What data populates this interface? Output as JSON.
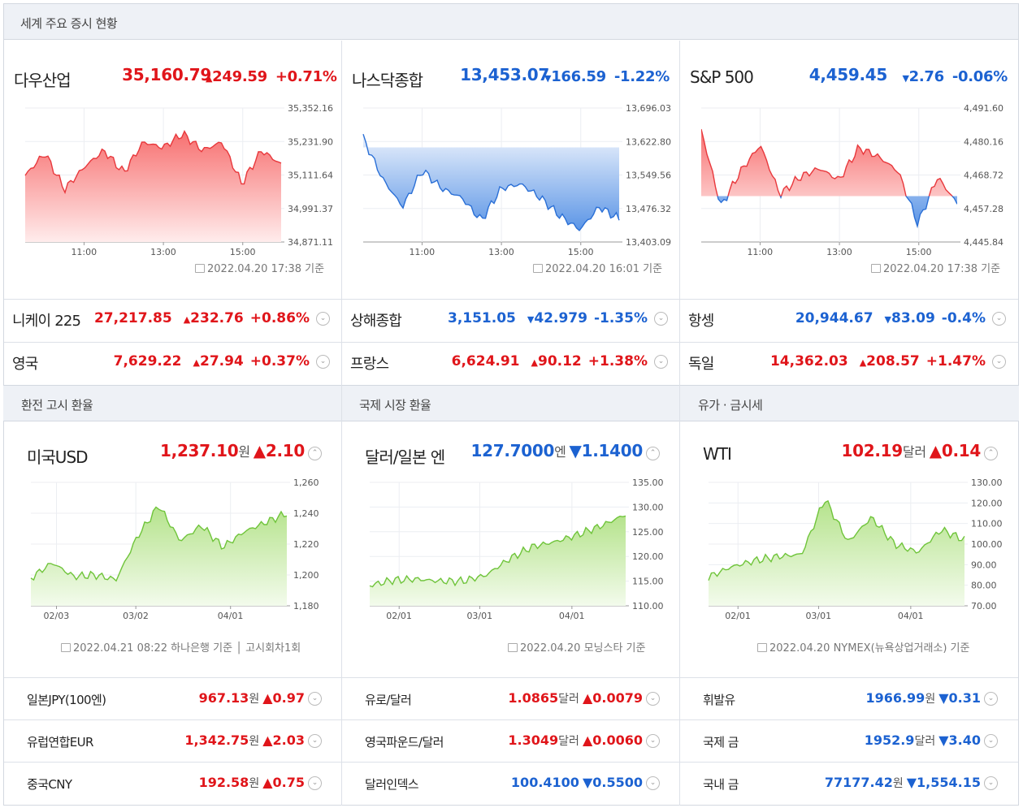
{
  "sections": {
    "stocks_title": "세계 주요 증시 현황",
    "fx_title": "환전 고시 환율",
    "intl_title": "국제 시장 환율",
    "oil_title": "유가 · 금시세"
  },
  "stock_panels": [
    {
      "name": "다우산업",
      "price": "35,160.79",
      "change": "249.59",
      "pct": "+0.71%",
      "dir": "up",
      "stamp": "2022.04.20 17:38 기준",
      "yticks": [
        "35,352.16",
        "35,231.90",
        "35,111.64",
        "34,991.37",
        "34,871.11"
      ],
      "xticks": [
        "11:00",
        "13:00",
        "15:00"
      ]
    },
    {
      "name": "나스닥종합",
      "price": "13,453.07",
      "change": "166.59",
      "pct": "-1.22%",
      "dir": "down",
      "stamp": "2022.04.20 16:01 기준",
      "yticks": [
        "13,696.03",
        "13,622.80",
        "13,549.56",
        "13,476.32",
        "13,403.09"
      ],
      "xticks": [
        "11:00",
        "13:00",
        "15:00"
      ]
    },
    {
      "name": "S&P 500",
      "price": "4,459.45",
      "change": "2.76",
      "pct": "-0.06%",
      "dir": "down",
      "stamp": "2022.04.20 17:38 기준",
      "yticks": [
        "4,491.60",
        "4,480.16",
        "4,468.72",
        "4,457.28",
        "4,445.84"
      ],
      "xticks": [
        "11:00",
        "13:00",
        "15:00"
      ]
    }
  ],
  "stock_rows": [
    [
      {
        "name": "니케이 225",
        "price": "27,217.85",
        "change": "232.76",
        "pct": "+0.86%",
        "dir": "up"
      },
      {
        "name": "상해종합",
        "price": "3,151.05",
        "change": "42.979",
        "pct": "-1.35%",
        "dir": "down"
      },
      {
        "name": "항셍",
        "price": "20,944.67",
        "change": "83.09",
        "pct": "-0.4%",
        "dir": "down"
      }
    ],
    [
      {
        "name": "영국",
        "price": "7,629.22",
        "change": "27.94",
        "pct": "+0.37%",
        "dir": "up"
      },
      {
        "name": "프랑스",
        "price": "6,624.91",
        "change": "90.12",
        "pct": "+1.38%",
        "dir": "up"
      },
      {
        "name": "독일",
        "price": "14,362.03",
        "change": "208.57",
        "pct": "+1.47%",
        "dir": "up"
      }
    ]
  ],
  "fx_panels": [
    {
      "name": "미국USD",
      "price": "1,237.10",
      "unit": "원",
      "change": "2.10",
      "dir": "up",
      "stamp": "2022.04.21 08:22 하나은행 기준 │ 고시회차1회",
      "yticks": [
        "1,260",
        "1,240",
        "1,220",
        "1,200",
        "1,180"
      ],
      "xticks": [
        "02/03",
        "03/02",
        "04/01"
      ]
    },
    {
      "name": "달러/일본 엔",
      "price": "127.7000",
      "unit": "엔",
      "change": "1.1400",
      "dir": "down",
      "stamp": "2022.04.20 모닝스타 기준",
      "yticks": [
        "135.00",
        "130.00",
        "125.00",
        "120.00",
        "115.00",
        "110.00"
      ],
      "xticks": [
        "02/01",
        "03/01",
        "04/01"
      ]
    },
    {
      "name": "WTI",
      "price": "102.19",
      "unit": "달러",
      "change": "0.14",
      "dir": "up",
      "stamp": "2022.04.20 NYMEX(뉴욕상업거래소) 기준",
      "yticks": [
        "130.00",
        "120.00",
        "110.00",
        "100.00",
        "90.00",
        "80.00",
        "70.00"
      ],
      "xticks": [
        "02/01",
        "03/01",
        "04/01"
      ]
    }
  ],
  "fx_rows": [
    [
      {
        "name": "일본JPY(100엔)",
        "price": "967.13",
        "unit": "원",
        "change": "0.97",
        "dir": "up"
      },
      {
        "name": "유로/달러",
        "price": "1.0865",
        "unit": "달러",
        "change": "0.0079",
        "dir": "up"
      },
      {
        "name": "휘발유",
        "price": "1966.99",
        "unit": "원",
        "change": "0.31",
        "dir": "down"
      }
    ],
    [
      {
        "name": "유럽연합EUR",
        "price": "1,342.75",
        "unit": "원",
        "change": "2.03",
        "dir": "up"
      },
      {
        "name": "영국파운드/달러",
        "price": "1.3049",
        "unit": "달러",
        "change": "0.0060",
        "dir": "up"
      },
      {
        "name": "국제 금",
        "price": "1952.9",
        "unit": "달러",
        "change": "3.40",
        "dir": "down"
      }
    ],
    [
      {
        "name": "중국CNY",
        "price": "192.58",
        "unit": "원",
        "change": "0.75",
        "dir": "up"
      },
      {
        "name": "달러인덱스",
        "price": "100.4100",
        "unit": "",
        "change": "0.5500",
        "dir": "down"
      },
      {
        "name": "국내 금",
        "price": "77177.42",
        "unit": "원",
        "change": "1,554.15",
        "dir": "down"
      }
    ]
  ],
  "chart_data": [
    {
      "type": "area",
      "title": "다우산업",
      "ylim": [
        34871.11,
        35352.16
      ],
      "x": [
        "09:30",
        "10:00",
        "10:30",
        "11:00",
        "11:30",
        "12:00",
        "12:30",
        "13:00",
        "13:30",
        "14:00",
        "14:30",
        "15:00",
        "15:30",
        "16:00"
      ],
      "y": [
        35110,
        35190,
        35060,
        35140,
        35200,
        35120,
        35230,
        35210,
        35260,
        35200,
        35230,
        35080,
        35200,
        35150
      ]
    },
    {
      "type": "area",
      "title": "나스닥종합",
      "ylim": [
        13403.09,
        13696.03
      ],
      "x": [
        "09:30",
        "10:00",
        "10:30",
        "11:00",
        "11:30",
        "12:00",
        "12:30",
        "13:00",
        "13:30",
        "14:00",
        "14:30",
        "15:00",
        "15:30",
        "16:00"
      ],
      "y": [
        13630,
        13540,
        13480,
        13560,
        13520,
        13500,
        13450,
        13520,
        13530,
        13500,
        13460,
        13430,
        13480,
        13453
      ],
      "baseline": 13610
    },
    {
      "type": "area",
      "title": "S&P 500",
      "ylim": [
        4445.84,
        4491.6
      ],
      "x": [
        "09:30",
        "10:00",
        "10:30",
        "11:00",
        "11:30",
        "12:00",
        "12:30",
        "13:00",
        "13:30",
        "14:00",
        "14:30",
        "15:00",
        "15:30",
        "16:00"
      ],
      "y": [
        4484,
        4458,
        4470,
        4479,
        4462,
        4468,
        4471,
        4467,
        4478,
        4475,
        4470,
        4452,
        4468,
        4459
      ],
      "baseline": 4461.5
    },
    {
      "type": "area",
      "title": "미국USD",
      "ylim": [
        1180,
        1260
      ],
      "x": [
        "01/21",
        "02/03",
        "02/14",
        "02/25",
        "03/02",
        "03/08",
        "03/14",
        "03/21",
        "03/28",
        "04/01",
        "04/08",
        "04/15",
        "04/21"
      ],
      "y": [
        1198,
        1208,
        1199,
        1200,
        1197,
        1225,
        1245,
        1222,
        1232,
        1218,
        1228,
        1234,
        1240
      ]
    },
    {
      "type": "area",
      "title": "달러/일본 엔",
      "ylim": [
        110,
        135
      ],
      "x": [
        "01/21",
        "02/01",
        "02/14",
        "02/25",
        "03/01",
        "03/10",
        "03/18",
        "03/25",
        "04/01",
        "04/08",
        "04/15",
        "04/20"
      ],
      "y": [
        114.1,
        115.2,
        115.4,
        115.0,
        115.0,
        116.2,
        119.5,
        122.0,
        123.0,
        124.5,
        126.3,
        128.5
      ]
    },
    {
      "type": "area",
      "title": "WTI",
      "ylim": [
        70,
        130
      ],
      "x": [
        "01/21",
        "02/01",
        "02/14",
        "02/25",
        "03/01",
        "03/08",
        "03/15",
        "03/22",
        "04/01",
        "04/08",
        "04/15",
        "04/20"
      ],
      "y": [
        84,
        89,
        92,
        94,
        95,
        122,
        101,
        113,
        100,
        96,
        107,
        102
      ]
    }
  ]
}
